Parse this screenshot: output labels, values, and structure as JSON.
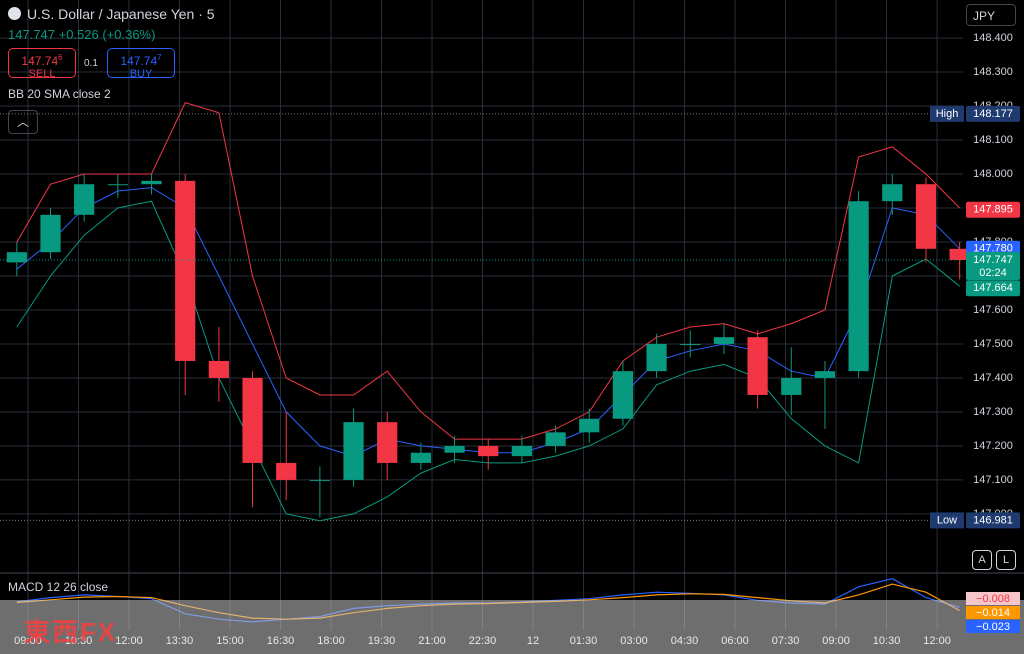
{
  "header": {
    "symbol": "U.S. Dollar / Japanese Yen · 5",
    "quote": "147.747 +0.526 (+0.36%)",
    "sell_price": "147.74",
    "sell_sup": "6",
    "sell_label": "SELL",
    "spread": "0.1",
    "buy_price": "147.74",
    "buy_sup": "7",
    "buy_label": "BUY",
    "indicator": "BB 20 SMA close 2",
    "currency": "JPY",
    "watermark": "東西FX"
  },
  "chart_data": [
    {
      "type": "candlestick",
      "x": [
        0.5,
        1.5,
        2.5,
        3.5,
        4.5,
        5.5,
        6.5,
        7.5,
        8.5,
        9.5,
        10.5,
        11.5,
        12.5,
        13.5,
        14.5,
        15.5,
        16.5,
        17.5,
        18.5,
        19.5,
        20.5,
        21.5,
        22.5,
        23.5,
        24.5,
        25.5,
        26.5,
        27.5,
        28.5
      ],
      "open": [
        147.74,
        147.77,
        147.88,
        147.97,
        147.97,
        147.98,
        147.45,
        147.4,
        147.15,
        147.1,
        147.1,
        147.27,
        147.15,
        147.18,
        147.2,
        147.17,
        147.2,
        147.24,
        147.28,
        147.42,
        147.5,
        147.5,
        147.52,
        147.35,
        147.4,
        147.42,
        147.92,
        147.97,
        147.78
      ],
      "high": [
        147.8,
        147.9,
        148.0,
        148.0,
        148.0,
        148.0,
        147.55,
        147.42,
        147.3,
        147.14,
        147.31,
        147.3,
        147.21,
        147.23,
        147.22,
        147.23,
        147.26,
        147.31,
        147.45,
        147.53,
        147.54,
        147.56,
        147.54,
        147.49,
        147.45,
        147.95,
        148.0,
        147.99,
        147.8
      ],
      "low": [
        147.7,
        147.75,
        147.86,
        147.93,
        147.94,
        147.35,
        147.33,
        147.02,
        147.04,
        146.99,
        147.08,
        147.1,
        147.13,
        147.15,
        147.13,
        147.15,
        147.18,
        147.21,
        147.26,
        147.4,
        147.46,
        147.47,
        147.31,
        147.29,
        147.25,
        147.4,
        147.88,
        147.74,
        147.69
      ],
      "close": [
        147.77,
        147.88,
        147.97,
        147.97,
        147.98,
        147.45,
        147.4,
        147.15,
        147.1,
        147.1,
        147.27,
        147.15,
        147.18,
        147.2,
        147.17,
        147.2,
        147.24,
        147.28,
        147.42,
        147.5,
        147.5,
        147.52,
        147.35,
        147.4,
        147.42,
        147.92,
        147.97,
        147.78,
        147.747
      ],
      "up_color": "#089981",
      "down_color": "#f23645",
      "series": [
        {
          "name": "Upper",
          "color": "#f23645",
          "values": [
            147.8,
            147.97,
            148.0,
            148.0,
            148.0,
            148.21,
            148.18,
            147.7,
            147.4,
            147.35,
            147.35,
            147.42,
            147.3,
            147.22,
            147.22,
            147.22,
            147.25,
            147.3,
            147.45,
            147.52,
            147.55,
            147.56,
            147.53,
            147.56,
            147.6,
            148.05,
            148.08,
            148.0,
            147.9
          ]
        },
        {
          "name": "Basis",
          "color": "#2962ff",
          "values": [
            147.72,
            147.8,
            147.9,
            147.95,
            147.96,
            147.9,
            147.7,
            147.5,
            147.3,
            147.2,
            147.17,
            147.22,
            147.2,
            147.19,
            147.18,
            147.18,
            147.21,
            147.25,
            147.35,
            147.45,
            147.48,
            147.5,
            147.48,
            147.42,
            147.4,
            147.6,
            147.9,
            147.88,
            147.78
          ]
        },
        {
          "name": "Lower",
          "color": "#089981",
          "values": [
            147.55,
            147.7,
            147.82,
            147.9,
            147.92,
            147.7,
            147.4,
            147.2,
            147.0,
            146.98,
            147.0,
            147.05,
            147.12,
            147.16,
            147.15,
            147.15,
            147.17,
            147.2,
            147.25,
            147.38,
            147.42,
            147.44,
            147.4,
            147.28,
            147.2,
            147.15,
            147.7,
            147.75,
            147.67
          ]
        }
      ],
      "xlim": [
        0,
        28.6
      ],
      "ylim": [
        146.835,
        148.512
      ],
      "xticks": [
        {
          "value": 0.83,
          "label": "09:00"
        },
        {
          "value": 2.33,
          "label": "10:30"
        },
        {
          "value": 3.83,
          "label": "12:00"
        },
        {
          "value": 5.33,
          "label": "13:30"
        },
        {
          "value": 6.83,
          "label": "15:00"
        },
        {
          "value": 8.33,
          "label": "16:30"
        },
        {
          "value": 9.83,
          "label": "18:00"
        },
        {
          "value": 11.33,
          "label": "19:30"
        },
        {
          "value": 12.83,
          "label": "21:00"
        },
        {
          "value": 14.33,
          "label": "22:30"
        },
        {
          "value": 15.83,
          "label": "12"
        },
        {
          "value": 17.33,
          "label": "01:30"
        },
        {
          "value": 18.83,
          "label": "03:00"
        },
        {
          "value": 20.33,
          "label": "04:30"
        },
        {
          "value": 21.83,
          "label": "06:00"
        },
        {
          "value": 23.33,
          "label": "07:30"
        },
        {
          "value": 24.83,
          "label": "09:00"
        },
        {
          "value": 26.33,
          "label": "10:30"
        },
        {
          "value": 27.83,
          "label": "12:00"
        }
      ],
      "yticks": [
        {
          "value": 147.0,
          "label": "147.000"
        },
        {
          "value": 147.1,
          "label": "147.100"
        },
        {
          "value": 147.2,
          "label": "147.200"
        },
        {
          "value": 147.3,
          "label": "147.300"
        },
        {
          "value": 147.4,
          "label": "147.400"
        },
        {
          "value": 147.5,
          "label": "147.500"
        },
        {
          "value": 147.6,
          "label": "147.600"
        },
        {
          "value": 147.7,
          "label": "147.700"
        },
        {
          "value": 147.8,
          "label": "147.800"
        },
        {
          "value": 147.9,
          "label": "147.900"
        },
        {
          "value": 148.0,
          "label": "148.000"
        },
        {
          "value": 148.1,
          "label": "148.100"
        },
        {
          "value": 148.2,
          "label": "148.200"
        },
        {
          "value": 148.3,
          "label": "148.300"
        },
        {
          "value": 148.4,
          "label": "148.400"
        }
      ],
      "grid": true,
      "badges": [
        {
          "name": "High",
          "value": 148.177,
          "label": "148.177",
          "color": "#1e3a6e"
        },
        {
          "value": 147.895,
          "label": "147.895",
          "color": "#f23645"
        },
        {
          "value": 147.78,
          "label": "147.780",
          "color": "#2962ff"
        },
        {
          "value": 147.747,
          "label": "147.747",
          "countdown": "02:24",
          "color": "#089981"
        },
        {
          "value": 147.664,
          "label": "147.664",
          "color": "#089981"
        },
        {
          "name": "Low",
          "value": 146.981,
          "label": "146.981",
          "color": "#1e3a6e"
        }
      ]
    },
    {
      "type": "line",
      "title": "MACD 12 26 close",
      "x": [
        0.5,
        1.5,
        2.5,
        3.5,
        4.5,
        5.5,
        6.5,
        7.5,
        8.5,
        9.5,
        10.5,
        11.5,
        12.5,
        13.5,
        14.5,
        15.5,
        16.5,
        17.5,
        18.5,
        19.5,
        20.5,
        21.5,
        22.5,
        23.5,
        24.5,
        25.5,
        26.5,
        27.5,
        28.5
      ],
      "series": [
        {
          "name": "MACD",
          "color": "#2962ff",
          "values": [
            0.002,
            0.01,
            0.015,
            0.012,
            0.008,
            -0.02,
            -0.03,
            -0.035,
            -0.03,
            -0.025,
            -0.01,
            -0.005,
            -0.002,
            0,
            0,
            0.002,
            0.005,
            0.008,
            0.015,
            0.02,
            0.018,
            0.015,
            0.005,
            0,
            -0.002,
            0.03,
            0.045,
            0.01,
            -0.008
          ]
        },
        {
          "name": "Signal",
          "color": "#ff9800",
          "values": [
            0.001,
            0.006,
            0.011,
            0.012,
            0.01,
            -0.005,
            -0.018,
            -0.028,
            -0.03,
            -0.028,
            -0.018,
            -0.01,
            -0.005,
            -0.002,
            -0.001,
            0.001,
            0.003,
            0.006,
            0.01,
            0.015,
            0.017,
            0.016,
            0.01,
            0.004,
            0,
            0.015,
            0.035,
            0.02,
            -0.014
          ]
        }
      ],
      "xlim": [
        0,
        28.6
      ],
      "ylim": [
        -0.05,
        0.05
      ],
      "badges": [
        {
          "value": -0.008,
          "label": "−0.008",
          "color": "#f7c6cb"
        },
        {
          "value": -0.014,
          "label": "−0.014",
          "color": "#ff9800"
        },
        {
          "value": -0.023,
          "label": "−0.023",
          "color": "#2962ff"
        }
      ]
    }
  ]
}
